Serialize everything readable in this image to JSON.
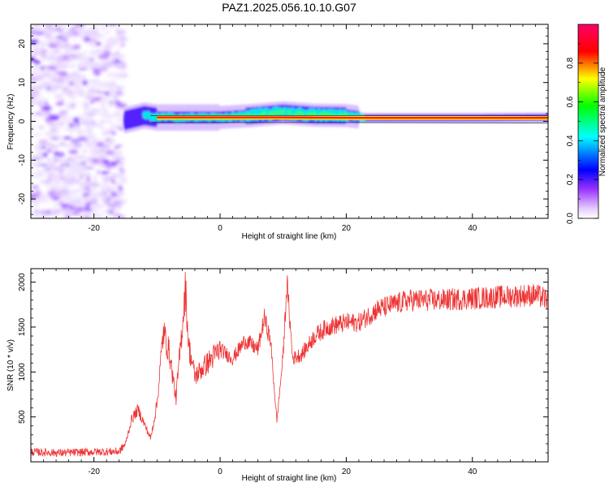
{
  "figure": {
    "title": "PAZ1.2025.056.10.10.G07"
  },
  "chart_data": [
    {
      "type": "heatmap",
      "xlabel": "Height of straight line (km)",
      "ylabel": "Frequency (Hz)",
      "xlim": [
        -30,
        52
      ],
      "ylim": [
        -25,
        25
      ],
      "xticks": [
        -20,
        0,
        20,
        40
      ],
      "yticks": [
        -20,
        -10,
        0,
        10,
        20
      ],
      "colorbar": {
        "label": "Normalized spectral amplitude",
        "range": [
          0.0,
          1.0
        ],
        "ticks": [
          0.0,
          0.2,
          0.4,
          0.6,
          0.8
        ],
        "colormap": [
          "#ffffff",
          "#e6ccff",
          "#9933ff",
          "#0000ff",
          "#00ffff",
          "#00ff00",
          "#ffff00",
          "#ff0000",
          "#ff0066"
        ]
      },
      "features": {
        "noise_region_x": [
          -30,
          -15
        ],
        "signal_band": [
          [
            -15,
            0.3
          ],
          [
            -12,
            1.5
          ],
          [
            -10,
            1.0
          ],
          [
            -5,
            1.0
          ],
          [
            0,
            1.0
          ],
          [
            5,
            1.5
          ],
          [
            10,
            2.2
          ],
          [
            15,
            1.6
          ],
          [
            20,
            1.5
          ],
          [
            23,
            0.9
          ],
          [
            30,
            0.9
          ],
          [
            40,
            0.9
          ],
          [
            52,
            1.0
          ]
        ]
      }
    },
    {
      "type": "line",
      "xlabel": "Height of straight line (km)",
      "ylabel": "SNR (10 * v/v)",
      "xlim": [
        -30,
        52
      ],
      "ylim": [
        0,
        2150
      ],
      "xticks": [
        -20,
        0,
        20,
        40
      ],
      "yticks": [
        500,
        1000,
        1500,
        2000
      ],
      "series": [
        {
          "color": "#ee3333",
          "envelope": [
            [
              -30,
              110
            ],
            [
              -25,
              100
            ],
            [
              -20,
              110
            ],
            [
              -16,
              115
            ],
            [
              -15,
              200
            ],
            [
              -14,
              480
            ],
            [
              -13,
              580
            ],
            [
              -12,
              420
            ],
            [
              -11,
              260
            ],
            [
              -10,
              650
            ],
            [
              -9,
              1450
            ],
            [
              -8,
              1200
            ],
            [
              -7,
              700
            ],
            [
              -6,
              1500
            ],
            [
              -5.5,
              1950
            ],
            [
              -5,
              1300
            ],
            [
              -4,
              950
            ],
            [
              -2,
              1100
            ],
            [
              0,
              1250
            ],
            [
              2,
              1150
            ],
            [
              4,
              1350
            ],
            [
              6,
              1250
            ],
            [
              7,
              1600
            ],
            [
              8,
              1350
            ],
            [
              8.5,
              900
            ],
            [
              9,
              450
            ],
            [
              10,
              1200
            ],
            [
              10.6,
              2000
            ],
            [
              11.5,
              1150
            ],
            [
              13,
              1200
            ],
            [
              15,
              1400
            ],
            [
              17,
              1500
            ],
            [
              20,
              1550
            ],
            [
              22,
              1550
            ],
            [
              25,
              1700
            ],
            [
              30,
              1800
            ],
            [
              35,
              1800
            ],
            [
              40,
              1820
            ],
            [
              45,
              1840
            ],
            [
              50,
              1860
            ],
            [
              52,
              1800
            ]
          ]
        }
      ]
    }
  ]
}
